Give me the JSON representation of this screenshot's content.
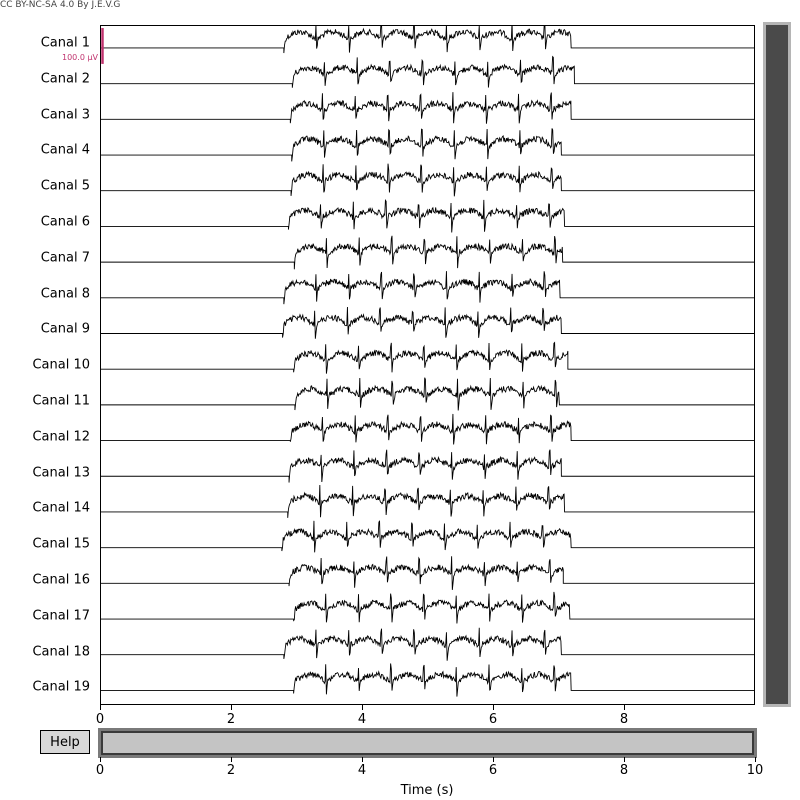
{
  "license_text": "CC BY-NC-SA 4.0 By J.E.V.G",
  "scale_bar": {
    "label": "100.0 µV",
    "color": "#c0336e"
  },
  "help_button": {
    "label": "Help"
  },
  "x_axis": {
    "label": "Time (s)",
    "range": [
      0,
      10
    ],
    "main_ticks": [
      "0",
      "2",
      "4",
      "6",
      "8"
    ],
    "scroll_ticks": [
      "0",
      "2",
      "4",
      "6",
      "8",
      "10"
    ]
  },
  "channels": [
    {
      "label": "Canal 1",
      "start": 2.8,
      "end": 7.2
    },
    {
      "label": "Canal 2",
      "start": 2.93,
      "end": 7.25
    },
    {
      "label": "Canal 3",
      "start": 2.9,
      "end": 7.2
    },
    {
      "label": "Canal 4",
      "start": 2.92,
      "end": 7.05
    },
    {
      "label": "Canal 5",
      "start": 2.91,
      "end": 7.05
    },
    {
      "label": "Canal 6",
      "start": 2.87,
      "end": 7.1
    },
    {
      "label": "Canal 7",
      "start": 2.96,
      "end": 7.07
    },
    {
      "label": "Canal 8",
      "start": 2.8,
      "end": 7.03
    },
    {
      "label": "Canal 9",
      "start": 2.78,
      "end": 7.05
    },
    {
      "label": "Canal 10",
      "start": 2.95,
      "end": 7.15
    },
    {
      "label": "Canal 11",
      "start": 2.97,
      "end": 7.02
    },
    {
      "label": "Canal 12",
      "start": 2.9,
      "end": 7.2
    },
    {
      "label": "Canal 13",
      "start": 2.88,
      "end": 7.05
    },
    {
      "label": "Canal 14",
      "start": 2.86,
      "end": 7.1
    },
    {
      "label": "Canal 15",
      "start": 2.77,
      "end": 7.2
    },
    {
      "label": "Canal 16",
      "start": 2.88,
      "end": 7.08
    },
    {
      "label": "Canal 17",
      "start": 2.95,
      "end": 7.18
    },
    {
      "label": "Canal 18",
      "start": 2.8,
      "end": 7.05
    },
    {
      "label": "Canal 19",
      "start": 2.95,
      "end": 7.2
    }
  ],
  "colors": {
    "trace": "#000000",
    "scrollbar_thumb": "#4a4a4a",
    "scrollbar_track": "#b5b5b5"
  }
}
